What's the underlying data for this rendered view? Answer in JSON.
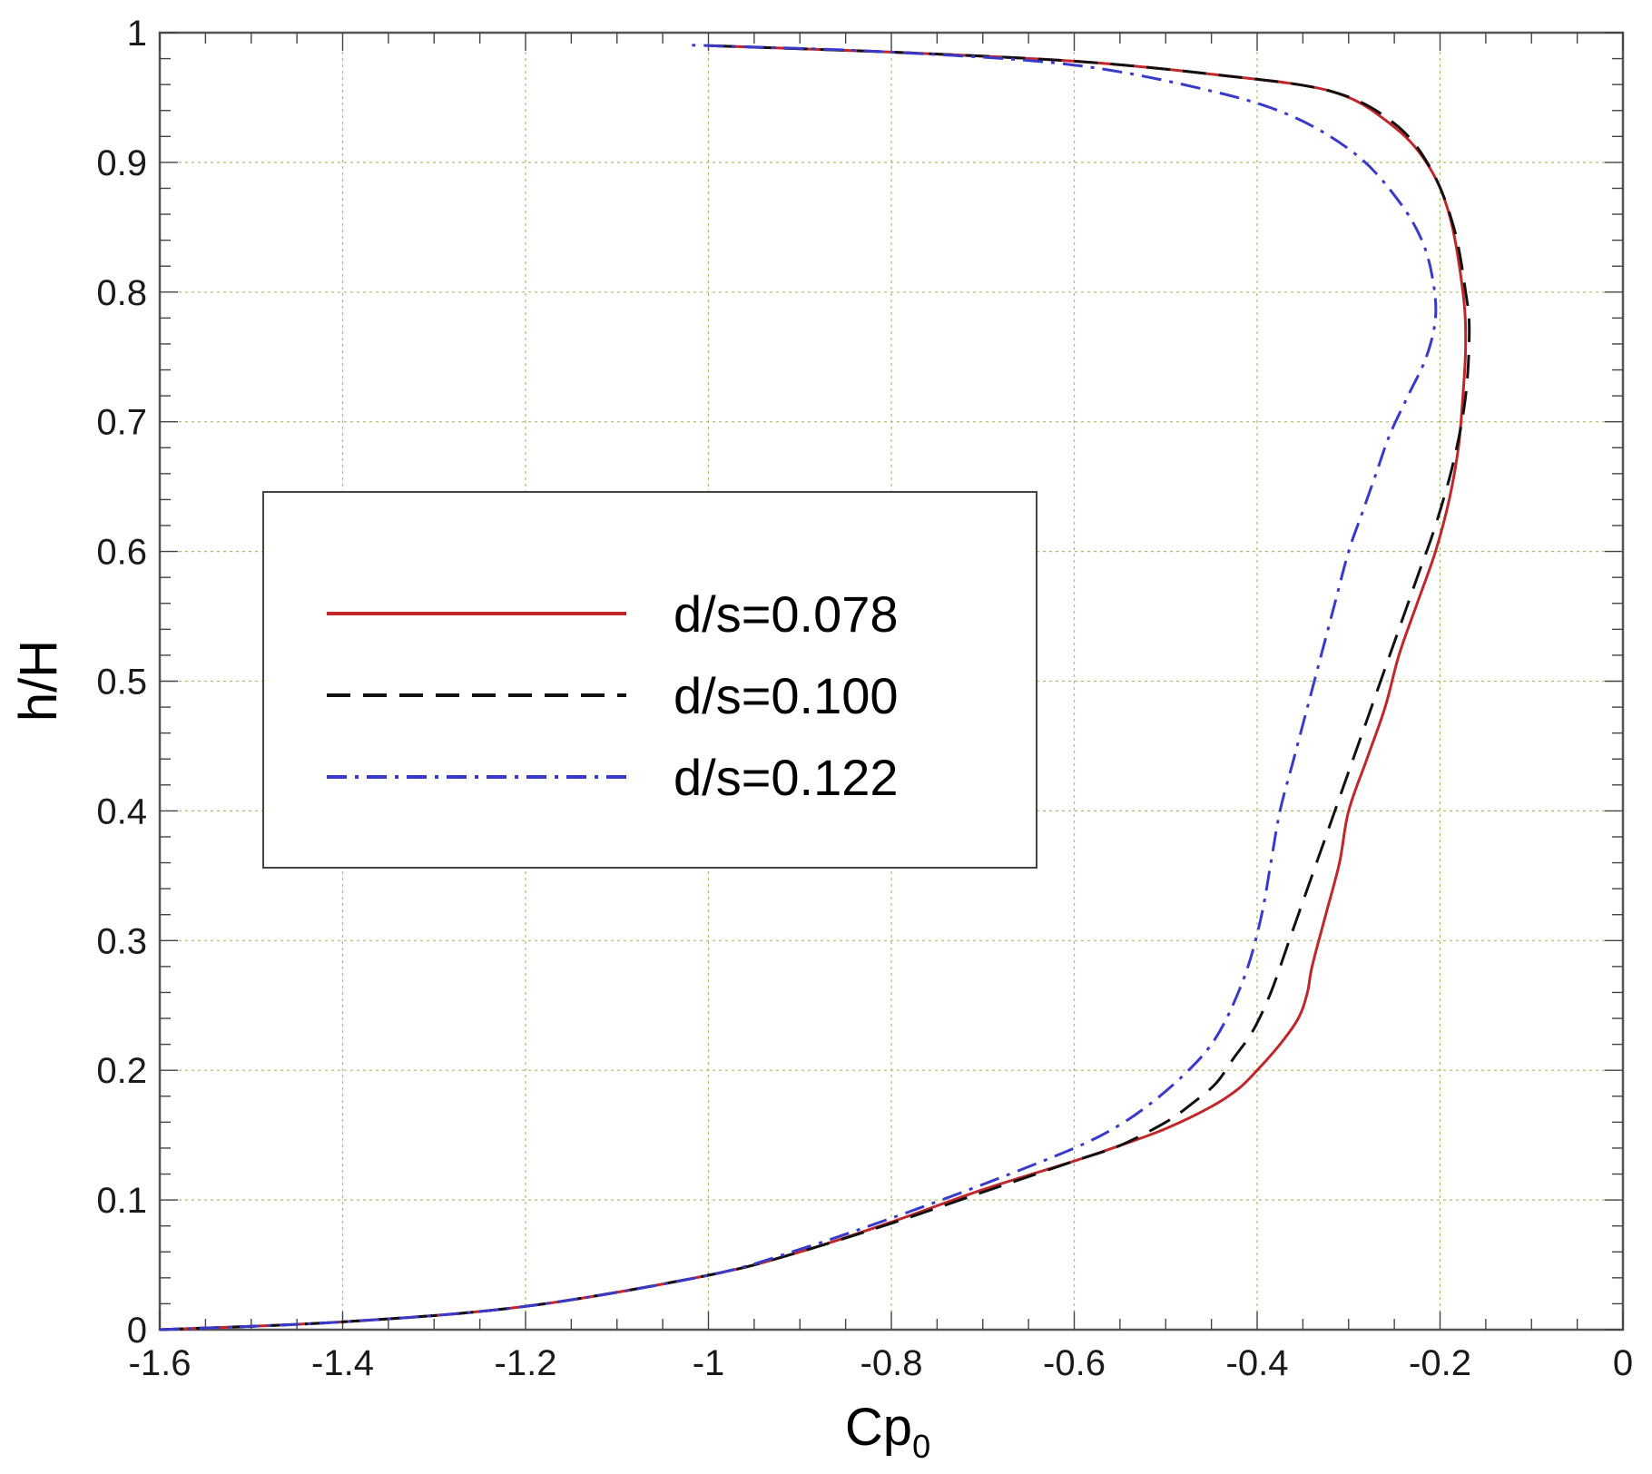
{
  "chart_data": {
    "type": "line",
    "xlabel": "Cp",
    "xlabel_subscript": "0",
    "ylabel": "h/H",
    "xlim": [
      -1.6,
      0
    ],
    "ylim": [
      0,
      1
    ],
    "x_ticks": [
      -1.6,
      -1.4,
      -1.2,
      -1,
      -0.8,
      -0.6,
      -0.4,
      -0.2,
      0
    ],
    "x_tick_labels": [
      "-1.6",
      "-1.4",
      "-1.2",
      "-1",
      "-0.8",
      "-0.6",
      "-0.4",
      "-0.2",
      "0"
    ],
    "y_ticks": [
      0,
      0.1,
      0.2,
      0.3,
      0.4,
      0.5,
      0.6,
      0.7,
      0.8,
      0.9,
      1
    ],
    "y_tick_labels": [
      "0",
      "0.1",
      "0.2",
      "0.3",
      "0.4",
      "0.5",
      "0.6",
      "0.7",
      "0.8",
      "0.9",
      "1"
    ],
    "grid": true,
    "legend_position": "center-left",
    "series": [
      {
        "name": "d/s=0.078",
        "color": "#c0262a",
        "style": "solid",
        "x": [
          -1.6,
          -1.4,
          -1.2,
          -1.0,
          -0.9,
          -0.8,
          -0.7,
          -0.6,
          -0.55,
          -0.5,
          -0.45,
          -0.42,
          -0.4,
          -0.375,
          -0.355,
          -0.345,
          -0.34,
          -0.325,
          -0.31,
          -0.3,
          -0.28,
          -0.26,
          -0.245,
          -0.225,
          -0.205,
          -0.19,
          -0.18,
          -0.175,
          -0.172,
          -0.175,
          -0.19,
          -0.215,
          -0.255,
          -0.32,
          -0.45,
          -0.6,
          -0.8,
          -1.0
        ],
        "y": [
          0,
          0.006,
          0.018,
          0.042,
          0.06,
          0.083,
          0.108,
          0.13,
          0.142,
          0.155,
          0.172,
          0.186,
          0.2,
          0.22,
          0.24,
          0.26,
          0.28,
          0.32,
          0.36,
          0.4,
          0.44,
          0.48,
          0.52,
          0.56,
          0.6,
          0.64,
          0.68,
          0.72,
          0.76,
          0.8,
          0.86,
          0.9,
          0.93,
          0.955,
          0.968,
          0.978,
          0.985,
          0.99
        ]
      },
      {
        "name": "d/s=0.100",
        "color": "#111111",
        "style": "dashed",
        "x": [
          -1.6,
          -1.4,
          -1.2,
          -1.0,
          -0.9,
          -0.8,
          -0.7,
          -0.6,
          -0.55,
          -0.5,
          -0.47,
          -0.445,
          -0.425,
          -0.405,
          -0.385,
          -0.365,
          -0.345,
          -0.325,
          -0.305,
          -0.285,
          -0.265,
          -0.245,
          -0.225,
          -0.205,
          -0.185,
          -0.172,
          -0.168,
          -0.172,
          -0.185,
          -0.21,
          -0.25,
          -0.32,
          -0.45,
          -0.6,
          -0.8,
          -1.0
        ],
        "y": [
          0,
          0.006,
          0.018,
          0.042,
          0.06,
          0.082,
          0.106,
          0.13,
          0.142,
          0.16,
          0.175,
          0.19,
          0.21,
          0.23,
          0.26,
          0.3,
          0.34,
          0.38,
          0.42,
          0.46,
          0.5,
          0.54,
          0.58,
          0.62,
          0.67,
          0.72,
          0.77,
          0.8,
          0.85,
          0.895,
          0.93,
          0.955,
          0.968,
          0.978,
          0.985,
          0.99
        ]
      },
      {
        "name": "d/s=0.122",
        "color": "#3a3aca",
        "style": "dashdot",
        "x": [
          -1.6,
          -1.4,
          -1.2,
          -1.0,
          -0.9,
          -0.8,
          -0.7,
          -0.6,
          -0.55,
          -0.51,
          -0.475,
          -0.45,
          -0.43,
          -0.41,
          -0.395,
          -0.385,
          -0.375,
          -0.36,
          -0.345,
          -0.33,
          -0.315,
          -0.3,
          -0.285,
          -0.27,
          -0.255,
          -0.235,
          -0.215,
          -0.205,
          -0.208,
          -0.22,
          -0.245,
          -0.29,
          -0.36,
          -0.45,
          -0.6,
          -0.8,
          -1.0,
          -1.02
        ],
        "y": [
          0,
          0.006,
          0.018,
          0.042,
          0.062,
          0.086,
          0.112,
          0.14,
          0.158,
          0.178,
          0.2,
          0.22,
          0.245,
          0.28,
          0.32,
          0.36,
          0.4,
          0.44,
          0.48,
          0.52,
          0.56,
          0.6,
          0.63,
          0.66,
          0.69,
          0.72,
          0.75,
          0.78,
          0.81,
          0.84,
          0.87,
          0.905,
          0.935,
          0.955,
          0.975,
          0.985,
          0.99,
          0.99
        ]
      }
    ]
  }
}
